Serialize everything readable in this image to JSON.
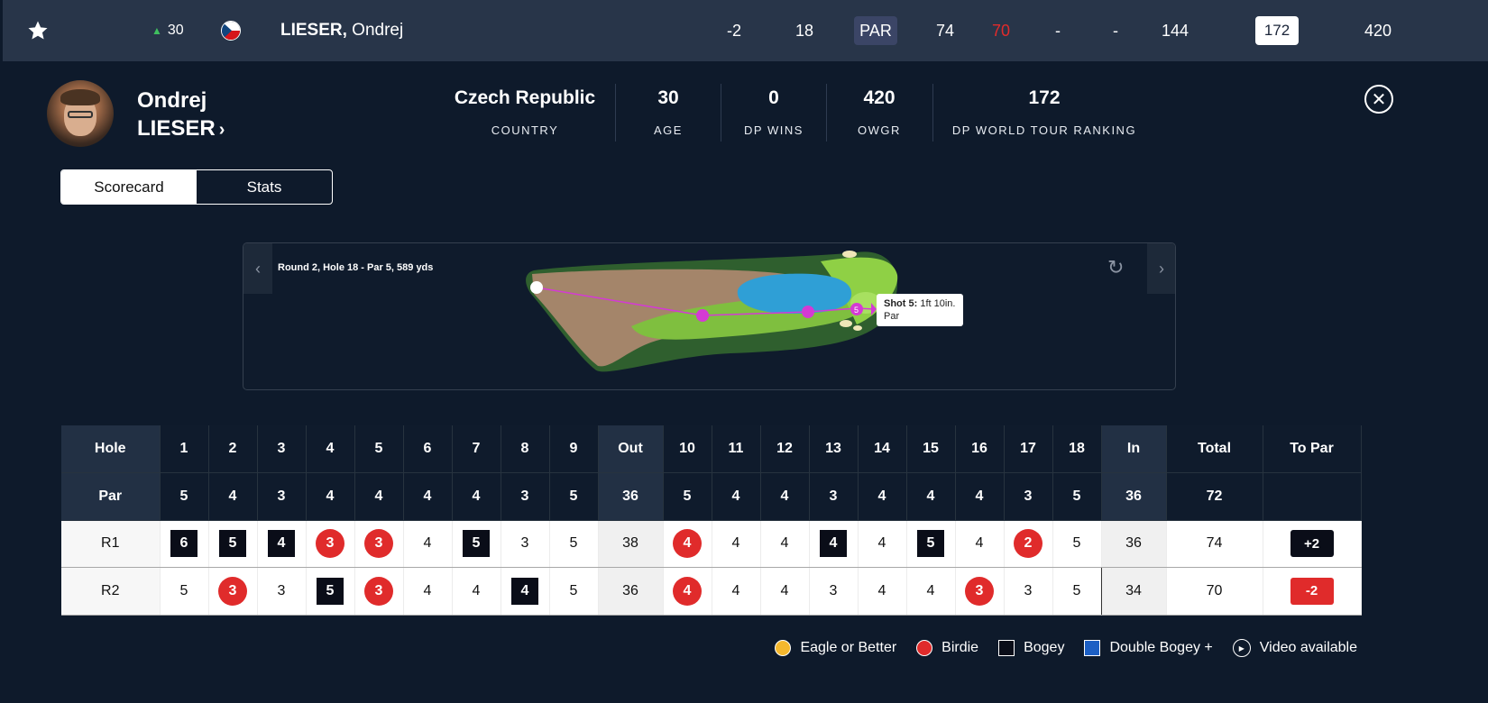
{
  "top_row": {
    "movement": "30",
    "player": {
      "surname": "LIESER,",
      "first": " Ondrej"
    },
    "cells": [
      "-2",
      "18",
      "PAR",
      "74",
      "70",
      "-",
      "-",
      "144",
      "172",
      "420"
    ]
  },
  "player": {
    "first_name": "Ondrej",
    "last_name": "LIESER",
    "stats": [
      {
        "value": "Czech Republic",
        "label": "COUNTRY"
      },
      {
        "value": "30",
        "label": "AGE"
      },
      {
        "value": "0",
        "label": "DP WINS"
      },
      {
        "value": "420",
        "label": "OWGR"
      },
      {
        "value": "172",
        "label": "DP WORLD TOUR RANKING"
      }
    ]
  },
  "tabs": [
    "Scorecard",
    "Stats"
  ],
  "map": {
    "title": "Round 2, Hole 18 - Par 5, 589 yds",
    "shot_label": "Shot 5:",
    "shot_dist": " 1ft 10in.",
    "shot_result": "Par",
    "shot_num": "5"
  },
  "scorecard": {
    "headers": [
      "Hole",
      "1",
      "2",
      "3",
      "4",
      "5",
      "6",
      "7",
      "8",
      "9",
      "Out",
      "10",
      "11",
      "12",
      "13",
      "14",
      "15",
      "16",
      "17",
      "18",
      "In",
      "Total",
      "To Par"
    ],
    "par": [
      "Par",
      "5",
      "4",
      "3",
      "4",
      "4",
      "4",
      "4",
      "3",
      "5",
      "36",
      "5",
      "4",
      "4",
      "3",
      "4",
      "4",
      "4",
      "3",
      "5",
      "36",
      "72",
      ""
    ],
    "rounds": [
      {
        "label": "R1",
        "scores": [
          "6",
          "5",
          "4",
          "3",
          "3",
          "4",
          "5",
          "3",
          "5",
          "38",
          "4",
          "4",
          "4",
          "4",
          "4",
          "5",
          "4",
          "2",
          "5",
          "36",
          "74"
        ],
        "to_par": "+2"
      },
      {
        "label": "R2",
        "scores": [
          "5",
          "3",
          "3",
          "5",
          "3",
          "4",
          "4",
          "4",
          "5",
          "36",
          "4",
          "4",
          "4",
          "3",
          "4",
          "4",
          "3",
          "3",
          "5",
          "34",
          "70"
        ],
        "to_par": "-2"
      }
    ]
  },
  "legend": [
    "Eagle or Better",
    "Birdie",
    "Bogey",
    "Double Bogey +",
    "Video available"
  ],
  "colors": {
    "eagle": "#f5b82e",
    "birdie": "#e02b2b",
    "bogey": "#0a0d18",
    "double_bogey": "#1c5fc4"
  }
}
